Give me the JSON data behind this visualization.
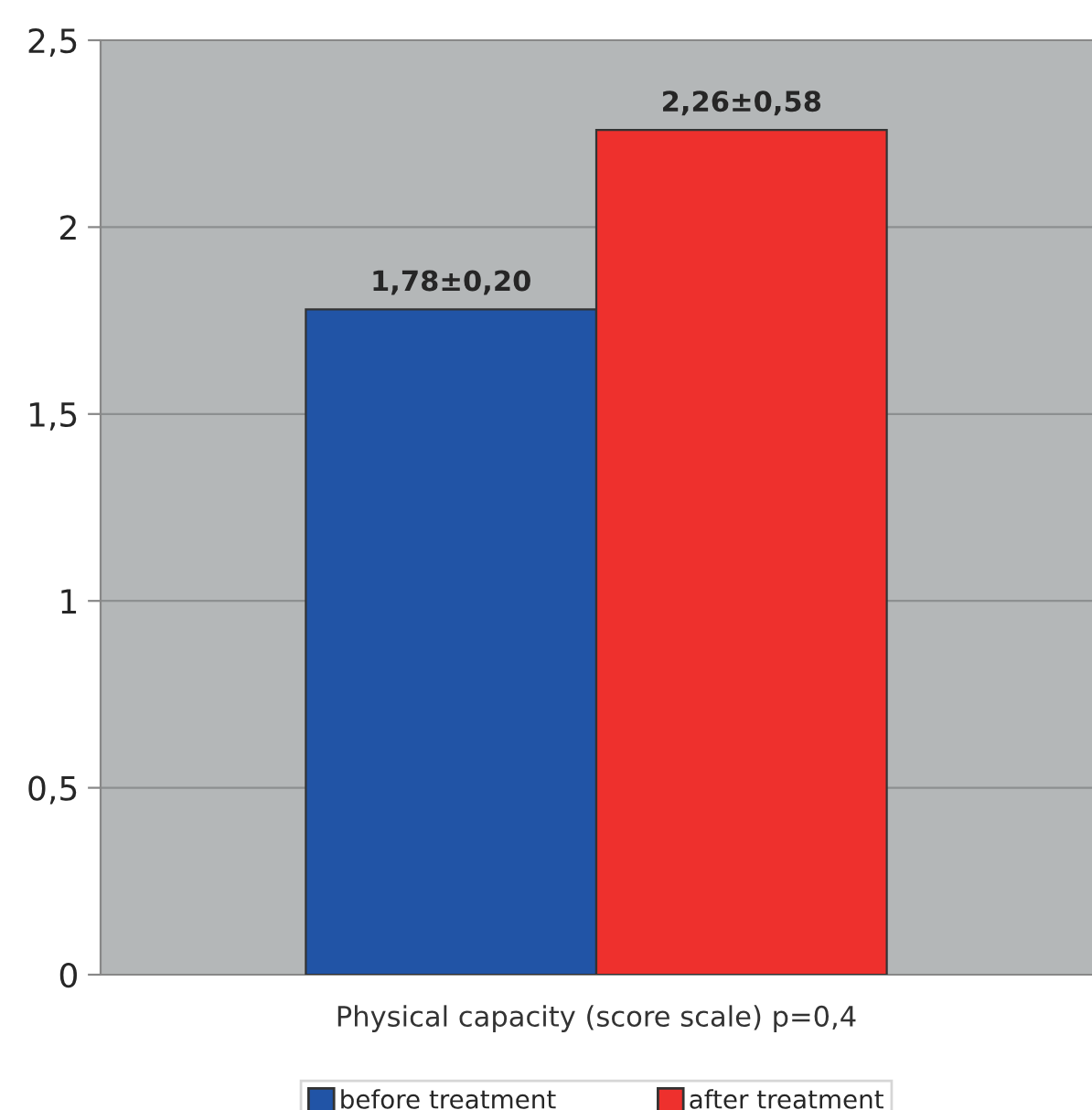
{
  "chart_data": {
    "type": "bar",
    "categories": [
      "Physical capacity (score scale) p=0,4"
    ],
    "series": [
      {
        "name": "before treatment",
        "color": "#2154a6",
        "values": [
          1.78
        ],
        "value_labels": [
          "1,78±0,20"
        ]
      },
      {
        "name": "after treatment",
        "color": "#ee302d",
        "values": [
          2.26
        ],
        "value_labels": [
          "2,26±0,58"
        ]
      }
    ],
    "ylim": [
      0,
      2.5
    ],
    "yticks": [
      0,
      {
        "value": 0.5,
        "label": "0,5"
      },
      1,
      {
        "value": 1.5,
        "label": "1,5"
      },
      2,
      {
        "value": 2.5,
        "label": "2,5"
      }
    ],
    "grid": "y",
    "legend": "bottom"
  }
}
